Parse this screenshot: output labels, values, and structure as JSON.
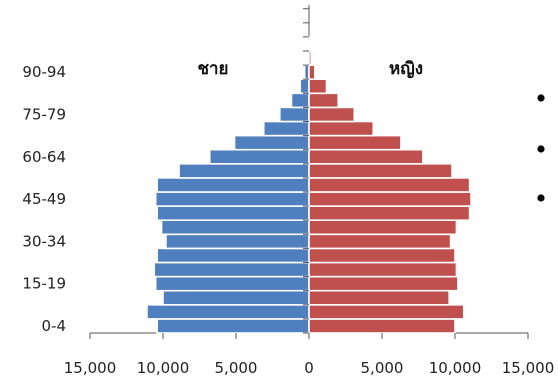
{
  "chart_data": {
    "type": "bar",
    "orientation": "horizontal",
    "layout": "population-pyramid",
    "categories": [
      "0-4",
      "5-9",
      "10-14",
      "15-19",
      "20-24",
      "25-29",
      "30-34",
      "35-39",
      "40-44",
      "45-49",
      "50-54",
      "55-59",
      "60-64",
      "65-69",
      "70-74",
      "75-79",
      "80-84",
      "85-89",
      "90-94",
      "95-99",
      "100+"
    ],
    "category_tick_labels_shown": [
      "0-4",
      "15-19",
      "30-34",
      "45-49",
      "60-64",
      "75-79",
      "90-94"
    ],
    "series": [
      {
        "name": "ชาย",
        "side": "left",
        "color": "#4f7fbf",
        "values": [
          10400,
          11100,
          10000,
          10500,
          10600,
          10400,
          9800,
          10100,
          10400,
          10500,
          10400,
          8900,
          6800,
          5100,
          3100,
          2000,
          1200,
          600,
          300,
          100,
          50
        ]
      },
      {
        "name": "หญิง",
        "side": "right",
        "color": "#c0504d",
        "values": [
          10000,
          10600,
          9600,
          10200,
          10100,
          10000,
          9700,
          10100,
          11000,
          11100,
          11000,
          9800,
          7800,
          6300,
          4400,
          3100,
          2000,
          1200,
          400,
          150,
          50
        ]
      }
    ],
    "xlim": [
      -15000,
      15000
    ],
    "x_tick_labels": [
      "15,000",
      "10,000",
      "5,000",
      "0",
      "5,000",
      "10,000",
      "15,000"
    ],
    "grid": false,
    "legend": "none",
    "bullet_count": 3
  }
}
